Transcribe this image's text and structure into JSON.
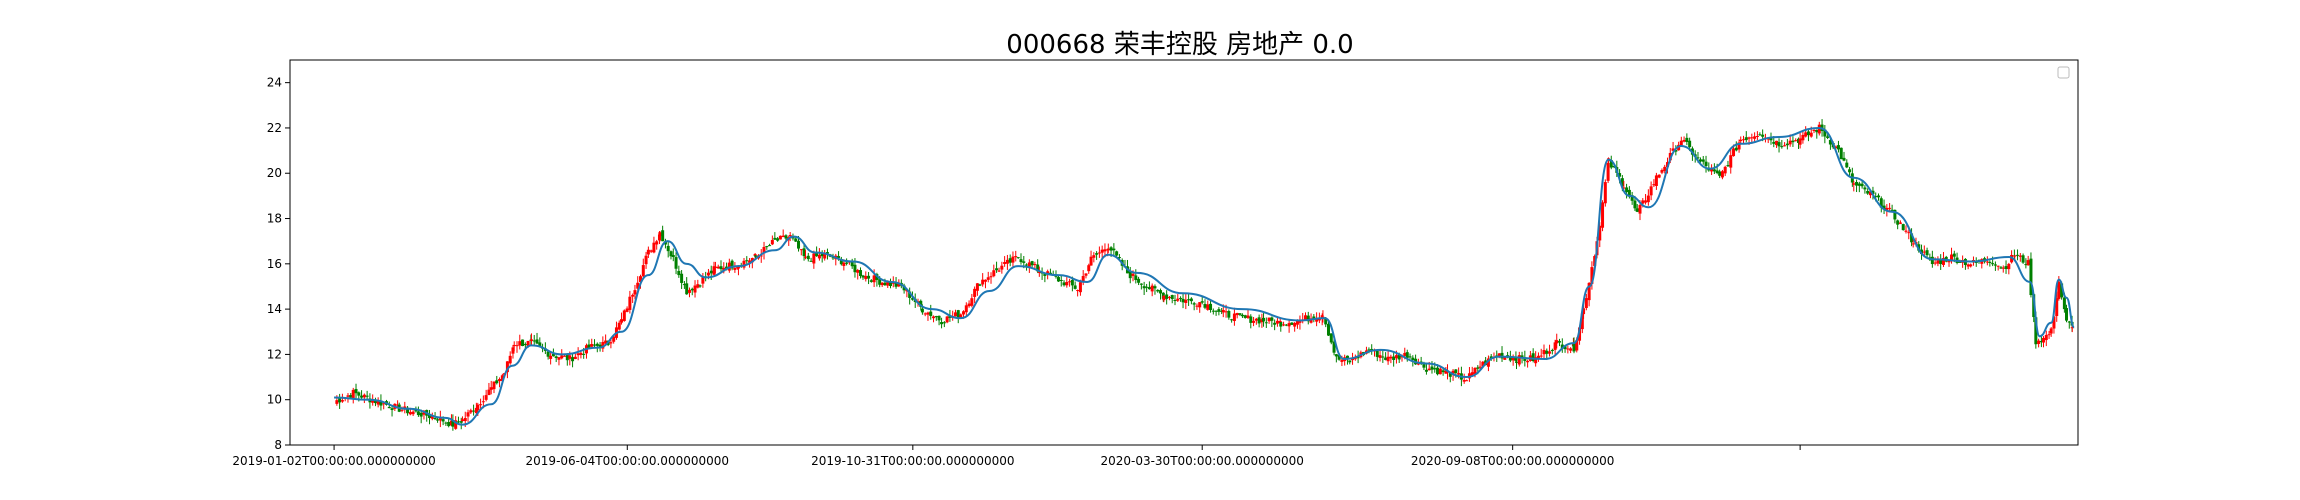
{
  "chart_data": {
    "type": "candlestick",
    "title": "000668 荣丰控股 房地产 0.0",
    "xlabel": "",
    "ylabel": "",
    "ylim": [
      8,
      25
    ],
    "y_ticks": [
      8,
      10,
      12,
      14,
      16,
      18,
      20,
      22,
      24
    ],
    "x_range": [
      "2018-12-10",
      "2021-06-30"
    ],
    "x_ticks": [
      {
        "date": "2019-01-02",
        "label": "2019-01-02T00:00:00.000000000"
      },
      {
        "date": "2019-06-04",
        "label": "2019-06-04T00:00:00.000000000"
      },
      {
        "date": "2019-10-31",
        "label": "2019-10-31T00:00:00.000000000"
      },
      {
        "date": "2020-03-30",
        "label": "2020-03-30T00:00:00.000000000"
      },
      {
        "date": "2020-09-08",
        "label": "2020-09-08T00:00:00.000000000"
      },
      {
        "date": "2021-02-05",
        "label": ""
      }
    ],
    "up_color": "#ff0000",
    "down_color": "#008000",
    "ma_color": "#1f77b4",
    "legend": "top-right",
    "grid": false,
    "close_series": [
      [
        "2019-01-02",
        9.9
      ],
      [
        "2019-01-12",
        10.3
      ],
      [
        "2019-01-25",
        9.9
      ],
      [
        "2019-02-05",
        9.6
      ],
      [
        "2019-02-15",
        9.4
      ],
      [
        "2019-02-25",
        9.2
      ],
      [
        "2019-03-05",
        8.9
      ],
      [
        "2019-03-10",
        9.1
      ],
      [
        "2019-03-18",
        9.8
      ],
      [
        "2019-03-25",
        10.5
      ],
      [
        "2019-04-01",
        11.2
      ],
      [
        "2019-04-06",
        12.5
      ],
      [
        "2019-04-15",
        12.5
      ],
      [
        "2019-04-25",
        12.0
      ],
      [
        "2019-05-05",
        11.8
      ],
      [
        "2019-05-15",
        12.3
      ],
      [
        "2019-05-25",
        12.5
      ],
      [
        "2019-06-01",
        13.5
      ],
      [
        "2019-06-08",
        15.0
      ],
      [
        "2019-06-15",
        16.5
      ],
      [
        "2019-06-21",
        17.4
      ],
      [
        "2019-06-28",
        16.2
      ],
      [
        "2019-07-05",
        14.8
      ],
      [
        "2019-07-12",
        15.2
      ],
      [
        "2019-07-20",
        15.8
      ],
      [
        "2019-08-01",
        16.0
      ],
      [
        "2019-08-10",
        16.3
      ],
      [
        "2019-08-20",
        17.0
      ],
      [
        "2019-08-28",
        17.2
      ],
      [
        "2019-09-05",
        16.2
      ],
      [
        "2019-09-15",
        16.4
      ],
      [
        "2019-09-25",
        16.1
      ],
      [
        "2019-10-05",
        15.5
      ],
      [
        "2019-10-15",
        15.2
      ],
      [
        "2019-10-25",
        15.0
      ],
      [
        "2019-11-05",
        14.0
      ],
      [
        "2019-11-15",
        13.5
      ],
      [
        "2019-11-25",
        13.8
      ],
      [
        "2019-12-05",
        15.2
      ],
      [
        "2019-12-15",
        15.8
      ],
      [
        "2019-12-25",
        16.3
      ],
      [
        "2020-01-05",
        15.7
      ],
      [
        "2020-01-15",
        15.3
      ],
      [
        "2020-01-25",
        14.9
      ],
      [
        "2020-02-01",
        16.2
      ],
      [
        "2020-02-10",
        16.8
      ],
      [
        "2020-02-20",
        15.6
      ],
      [
        "2020-03-01",
        15.0
      ],
      [
        "2020-03-10",
        14.6
      ],
      [
        "2020-03-20",
        14.4
      ],
      [
        "2020-03-30",
        14.3
      ],
      [
        "2020-04-10",
        13.8
      ],
      [
        "2020-04-20",
        13.6
      ],
      [
        "2020-05-01",
        13.5
      ],
      [
        "2020-05-10",
        13.4
      ],
      [
        "2020-05-20",
        13.5
      ],
      [
        "2020-06-01",
        13.8
      ],
      [
        "2020-06-08",
        11.8
      ],
      [
        "2020-06-15",
        11.7
      ],
      [
        "2020-06-25",
        12.2
      ],
      [
        "2020-07-05",
        11.8
      ],
      [
        "2020-07-15",
        12.0
      ],
      [
        "2020-07-25",
        11.4
      ],
      [
        "2020-08-05",
        11.2
      ],
      [
        "2020-08-15",
        10.9
      ],
      [
        "2020-08-22",
        11.5
      ],
      [
        "2020-09-01",
        12.0
      ],
      [
        "2020-09-10",
        11.8
      ],
      [
        "2020-09-20",
        11.8
      ],
      [
        "2020-10-01",
        12.5
      ],
      [
        "2020-10-10",
        12.3
      ],
      [
        "2020-10-15",
        14.0
      ],
      [
        "2020-10-22",
        17.0
      ],
      [
        "2020-10-28",
        20.5
      ],
      [
        "2020-11-05",
        19.5
      ],
      [
        "2020-11-12",
        18.2
      ],
      [
        "2020-11-22",
        19.8
      ],
      [
        "2020-12-05",
        21.5
      ],
      [
        "2020-12-15",
        20.5
      ],
      [
        "2020-12-25",
        19.8
      ],
      [
        "2021-01-05",
        21.5
      ],
      [
        "2021-01-15",
        21.8
      ],
      [
        "2021-01-25",
        21.3
      ],
      [
        "2021-02-05",
        21.5
      ],
      [
        "2021-02-15",
        22.0
      ],
      [
        "2021-02-25",
        21.0
      ],
      [
        "2021-03-05",
        19.5
      ],
      [
        "2021-03-15",
        19.0
      ],
      [
        "2021-03-25",
        18.2
      ],
      [
        "2021-04-05",
        17.0
      ],
      [
        "2021-04-15",
        16.0
      ],
      [
        "2021-04-25",
        16.3
      ],
      [
        "2021-05-05",
        16.0
      ],
      [
        "2021-05-15",
        16.2
      ],
      [
        "2021-05-22",
        15.8
      ],
      [
        "2021-05-28",
        16.4
      ],
      [
        "2021-06-04",
        16.0
      ],
      [
        "2021-06-08",
        12.6
      ],
      [
        "2021-06-12",
        12.7
      ],
      [
        "2021-06-16",
        13.0
      ],
      [
        "2021-06-20",
        15.2
      ],
      [
        "2021-06-24",
        13.4
      ],
      [
        "2021-06-27",
        13.2
      ]
    ],
    "ma_series": [
      [
        "2019-01-02",
        10.1
      ],
      [
        "2019-01-20",
        10.0
      ],
      [
        "2019-02-10",
        9.6
      ],
      [
        "2019-03-01",
        9.2
      ],
      [
        "2019-03-10",
        8.9
      ],
      [
        "2019-03-25",
        9.8
      ],
      [
        "2019-04-05",
        11.5
      ],
      [
        "2019-04-15",
        12.4
      ],
      [
        "2019-05-01",
        12.0
      ],
      [
        "2019-05-20",
        12.3
      ],
      [
        "2019-06-01",
        13.0
      ],
      [
        "2019-06-15",
        15.5
      ],
      [
        "2019-06-25",
        17.0
      ],
      [
        "2019-07-05",
        16.0
      ],
      [
        "2019-07-15",
        15.4
      ],
      [
        "2019-08-01",
        15.9
      ],
      [
        "2019-08-20",
        16.6
      ],
      [
        "2019-08-30",
        17.2
      ],
      [
        "2019-09-10",
        16.5
      ],
      [
        "2019-09-30",
        16.1
      ],
      [
        "2019-10-20",
        15.2
      ],
      [
        "2019-11-10",
        14.0
      ],
      [
        "2019-11-25",
        13.6
      ],
      [
        "2019-12-10",
        14.8
      ],
      [
        "2019-12-25",
        15.9
      ],
      [
        "2020-01-15",
        15.5
      ],
      [
        "2020-01-30",
        15.2
      ],
      [
        "2020-02-10",
        16.4
      ],
      [
        "2020-02-25",
        15.6
      ],
      [
        "2020-03-20",
        14.7
      ],
      [
        "2020-04-20",
        14.0
      ],
      [
        "2020-05-20",
        13.5
      ],
      [
        "2020-06-02",
        13.6
      ],
      [
        "2020-06-12",
        11.8
      ],
      [
        "2020-07-01",
        12.2
      ],
      [
        "2020-07-25",
        11.6
      ],
      [
        "2020-08-15",
        11.0
      ],
      [
        "2020-09-01",
        11.9
      ],
      [
        "2020-09-25",
        11.8
      ],
      [
        "2020-10-10",
        12.5
      ],
      [
        "2020-10-18",
        15.0
      ],
      [
        "2020-10-28",
        20.6
      ],
      [
        "2020-11-08",
        19.0
      ],
      [
        "2020-11-18",
        18.5
      ],
      [
        "2020-12-05",
        21.2
      ],
      [
        "2020-12-20",
        20.2
      ],
      [
        "2021-01-05",
        21.3
      ],
      [
        "2021-01-25",
        21.6
      ],
      [
        "2021-02-15",
        22.0
      ],
      [
        "2021-03-05",
        19.8
      ],
      [
        "2021-03-25",
        18.3
      ],
      [
        "2021-04-15",
        16.2
      ],
      [
        "2021-05-05",
        16.1
      ],
      [
        "2021-05-25",
        16.3
      ],
      [
        "2021-06-05",
        15.2
      ],
      [
        "2021-06-10",
        12.8
      ],
      [
        "2021-06-16",
        13.4
      ],
      [
        "2021-06-20",
        15.3
      ],
      [
        "2021-06-24",
        14.5
      ],
      [
        "2021-06-28",
        13.2
      ]
    ]
  }
}
